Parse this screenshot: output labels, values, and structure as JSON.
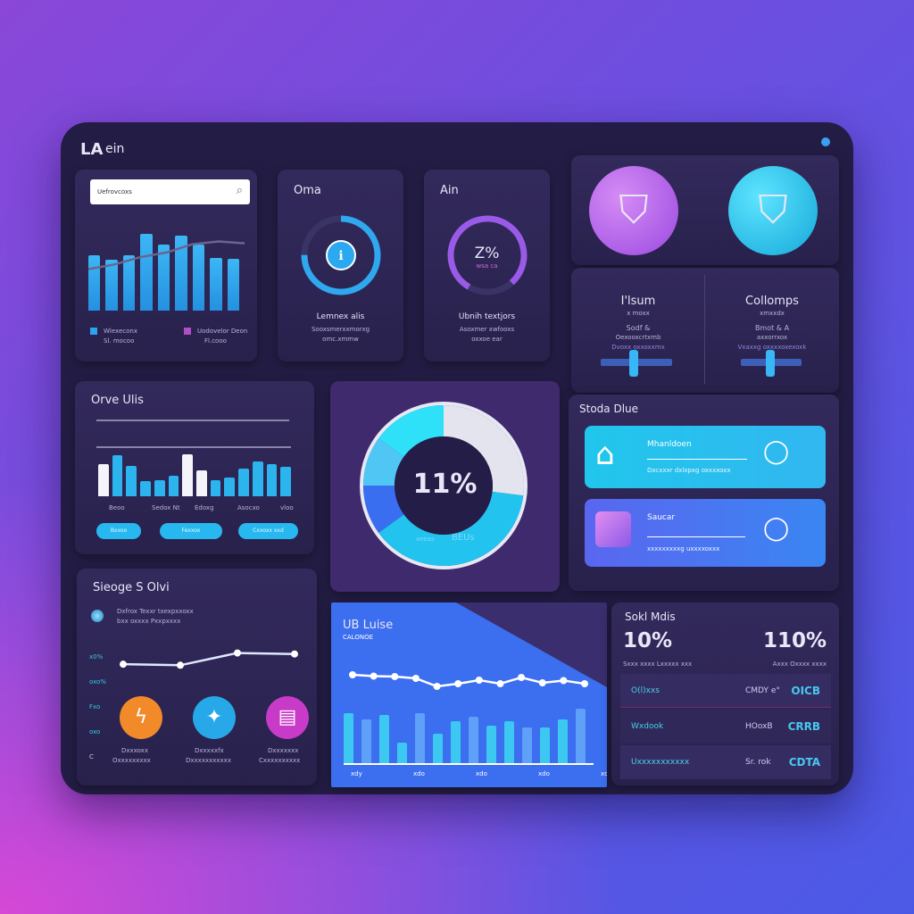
{
  "app": {
    "logo": "LA",
    "title": "ein"
  },
  "search": {
    "placeholder": "Uefrovcoxs"
  },
  "card_bars": {
    "legend": [
      {
        "label": "Wlexeconx",
        "sub": "Sl. mocoo",
        "color": "#2aa3f0"
      },
      {
        "label": "Uodovelor Deon",
        "sub": "Fl.cooo",
        "color": "#b04fc6"
      }
    ],
    "values": [
      60,
      55,
      60,
      83,
      72,
      81,
      72,
      57,
      56
    ],
    "trend": [
      45,
      50,
      58,
      63,
      72,
      75,
      73
    ]
  },
  "gauge1": {
    "title": "Oma",
    "label": "Lemnex alis",
    "sub1": "Sooxsmerxxmorxg",
    "sub2": "omc.xmmw",
    "progress": 0.75
  },
  "gauge2": {
    "title": "Ain",
    "value": "Z%",
    "sub_value": "wsa ca",
    "label": "Ubnih textjors",
    "sub1": "Asoxmer xwfooxs",
    "sub2": "oxxoe ear",
    "progress": 0.8
  },
  "badges": [
    {
      "icon": "shield-icon",
      "color": "#b36be8"
    },
    {
      "icon": "shield-icon",
      "color": "#28c8ee"
    }
  ],
  "columns": [
    {
      "title": "I'lsum",
      "sub": "x moxx",
      "l1": "Sodf &",
      "l2": "Oexooxcrtxmb",
      "l3": "Dvoxx oxxoxxmx",
      "slider": 0.45
    },
    {
      "title": "Collomps",
      "sub": "xmxxdx",
      "l1": "Bmot & A",
      "l2": "axxorrxox",
      "l3": "Vxaxxg oxxxxoxexoxk",
      "slider": 0.45
    }
  ],
  "bars_card": {
    "title": "Orve Ulis",
    "values": [
      55,
      70,
      52,
      26,
      28,
      35,
      72,
      45,
      28,
      32,
      48,
      60,
      55,
      50
    ],
    "labels": [
      "Beoo",
      "Sedox Nt",
      "Edoxg",
      "Asocxo",
      "vloo"
    ],
    "buttons": [
      "Bxxoo",
      "Fexxox",
      "Cxxoxx xxd"
    ]
  },
  "donut": {
    "value": "11%",
    "caption": "xeeas",
    "caption2": "BEUs",
    "segments": [
      0.27,
      0.38,
      0.1,
      0.1,
      0.15
    ]
  },
  "stats_list": {
    "title": "Stoda Dlue",
    "rows": [
      {
        "title": "Mhanldoen",
        "sub": "Dxcxxxr dxlxpxg oxxxxoxx",
        "color": "#22c3ee"
      },
      {
        "title": "Saucar",
        "sub": "xxxxxxxxxg uxxxxoxxx",
        "color": "#3b7ef0"
      }
    ]
  },
  "line_card": {
    "title": "Sieoge S Olvi",
    "desc1": "Dxfrox Texxr txexpxxoxx",
    "desc2": "bxx oxxxx Pxxpxxxx",
    "yticks": [
      "x0%",
      "oxo%",
      "Fxo",
      "oxo",
      "C"
    ],
    "values": [
      40,
      38,
      62,
      60
    ],
    "apps": [
      {
        "icon": "flame-icon",
        "color": "#f28a2a",
        "label": "Dxxxoxx",
        "sub": "Oxxxxxxxxx"
      },
      {
        "icon": "bird-icon",
        "color": "#27a8e8",
        "label": "Dxxxxxfx",
        "sub": "Dxxxxxxxxxxx"
      },
      {
        "icon": "document-icon",
        "color": "#c83ac8",
        "label": "Dxxxxxxx",
        "sub": "Cxxxxxxxxxx"
      }
    ]
  },
  "area_card": {
    "title": "UB Luise",
    "subtitle": "CALONOE",
    "line": [
      78,
      75,
      74,
      70,
      52,
      58,
      66,
      58,
      72,
      60,
      65,
      58
    ],
    "bars": [
      48,
      42,
      46,
      20,
      48,
      28,
      40,
      45,
      36,
      40,
      34,
      34,
      42,
      52
    ],
    "xlabels": [
      "xdy",
      "xdo",
      "xdo",
      "xdo",
      "xdo"
    ]
  },
  "metrics": {
    "title": "Sokl Mdis",
    "left": {
      "value": "10%",
      "sub": "Sxxx xxxx Lxxxxx xxx"
    },
    "right": {
      "value": "110%",
      "sub": "Axxx Oxxxx xxxx"
    },
    "rows": [
      {
        "name": "O(l)xxs",
        "meta": "CMDY e°",
        "value": "OICB"
      },
      {
        "name": "Wxdook",
        "meta": "HOoxB",
        "value": "CRRB"
      },
      {
        "name": "Uxxxxxxxxxxx",
        "meta": "Sr. rok",
        "value": "CDTA"
      }
    ]
  }
}
